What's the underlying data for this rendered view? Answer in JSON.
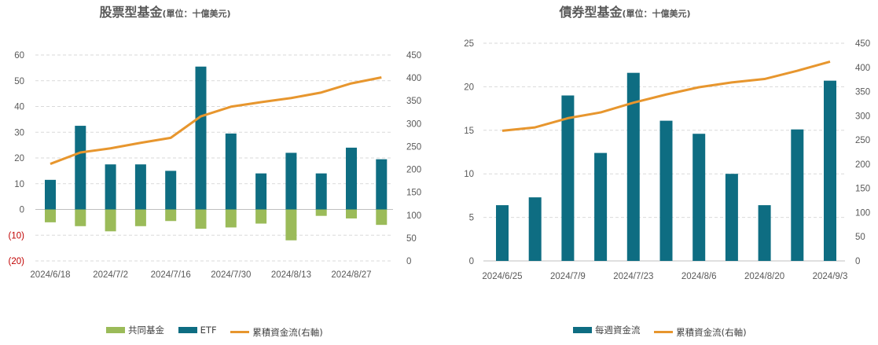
{
  "colors": {
    "etf": "#0e6d82",
    "mutual": "#9bbb59",
    "cumulative": "#e7962e",
    "grid": "#d9d9d9"
  },
  "chart_data": [
    {
      "type": "bar",
      "title": "股票型基金",
      "unit": "(單位：十億美元)",
      "x_tick_labels": [
        "2024/6/18",
        "2024/7/2",
        "2024/7/16",
        "2024/7/30",
        "2024/8/13",
        "2024/8/27"
      ],
      "y_left": {
        "ticks": [
          "60",
          "50",
          "40",
          "30",
          "20",
          "10",
          "0",
          "(10)",
          "(20)"
        ],
        "range": [
          -20,
          60
        ]
      },
      "y_right": {
        "ticks": [
          "450",
          "400",
          "350",
          "300",
          "250",
          "200",
          "150",
          "100",
          "50",
          "0"
        ],
        "range": [
          0,
          450
        ]
      },
      "series": [
        {
          "name": "共同基金",
          "kind": "bar",
          "values": [
            -5,
            -6.5,
            -8.5,
            -6.5,
            -4.5,
            -7.5,
            -7,
            -5.5,
            -12,
            -2.5,
            -3.5,
            -6
          ]
        },
        {
          "name": "ETF",
          "kind": "bar",
          "values": [
            11.5,
            32.5,
            17.5,
            17.5,
            15,
            55.5,
            29.5,
            14,
            22,
            14,
            24,
            19.5
          ]
        },
        {
          "name": "累積資金流(右軸)",
          "kind": "line",
          "axis": "right",
          "values": [
            212,
            237,
            246,
            258,
            269,
            316,
            337,
            347,
            356,
            368,
            388,
            401
          ]
        }
      ],
      "legend": [
        "共同基金",
        "ETF",
        "累積資金流(右軸)"
      ],
      "grid": true
    },
    {
      "type": "bar",
      "title": "債券型基金",
      "unit": "(單位：十億美元)",
      "x_tick_labels": [
        "2024/6/25",
        "2024/7/9",
        "2024/7/23",
        "2024/8/6",
        "2024/8/20",
        "2024/9/3"
      ],
      "y_left": {
        "ticks": [
          "25",
          "20",
          "15",
          "10",
          "5",
          "0"
        ],
        "range": [
          0,
          25
        ]
      },
      "y_right": {
        "ticks": [
          "450",
          "400",
          "350",
          "300",
          "250",
          "200",
          "150",
          "100",
          "50",
          "0"
        ],
        "range": [
          0,
          450
        ]
      },
      "series": [
        {
          "name": "每週資金流",
          "kind": "bar",
          "values": [
            6.4,
            7.3,
            19,
            12.4,
            21.6,
            16.1,
            14.6,
            10,
            6.4,
            15.1,
            20.7
          ]
        },
        {
          "name": "累積資金流(右軸)",
          "kind": "line",
          "axis": "right",
          "values": [
            269,
            276,
            295,
            307,
            327,
            344,
            359,
            369,
            376,
            393,
            412
          ]
        }
      ],
      "legend": [
        "每週資金流",
        "累積資金流(右軸)"
      ],
      "grid": true
    }
  ]
}
